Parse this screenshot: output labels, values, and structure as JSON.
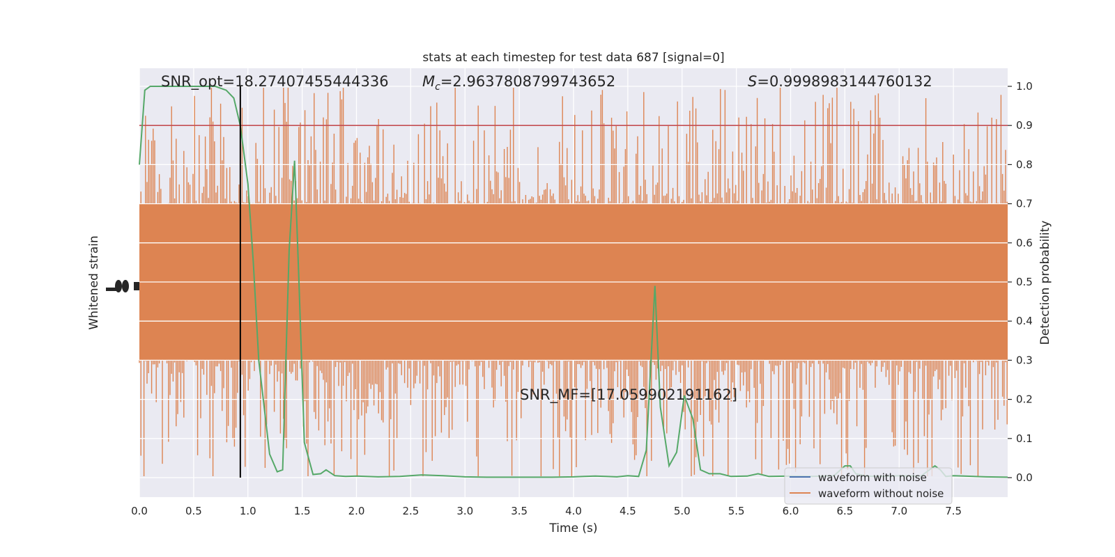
{
  "chart_data": {
    "type": "line",
    "title": "stats at each timestep for test data 687 [signal=0]",
    "xlabel": "Time (s)",
    "ylabel_left": "Whitened strain",
    "ylabel_right": "Detection probability",
    "xlim": [
      0.0,
      8.0
    ],
    "ylim_right": [
      -0.05,
      1.05
    ],
    "x_ticks": [
      "0.0",
      "0.5",
      "1.0",
      "1.5",
      "2.0",
      "2.5",
      "3.0",
      "3.5",
      "4.0",
      "4.5",
      "5.0",
      "5.5",
      "6.0",
      "6.5",
      "7.0",
      "7.5"
    ],
    "y_ticks_right": [
      "0.0",
      "0.1",
      "0.2",
      "0.3",
      "0.4",
      "0.5",
      "0.6",
      "0.7",
      "0.8",
      "0.9",
      "1.0"
    ],
    "grid": true,
    "legend": {
      "placement": "lower-right",
      "entries": [
        {
          "label": "waveform with noise",
          "color": "#4c72b0"
        },
        {
          "label": "waveform without noise",
          "color": "#dd8452"
        }
      ]
    },
    "annotations": {
      "snr_opt": "SNR_opt=18.27407455444336",
      "mc_symbol": "M",
      "mc_sub": "c",
      "mc_value": "=2.9637808799743652",
      "s_symbol": "S",
      "s_value": "=0.9998983144760132",
      "snr_mf": "SNR_MF=[17.059902191162]"
    },
    "threshold": {
      "y": 0.9,
      "color": "#c44e52"
    },
    "marker_time": 0.93,
    "noise_band": {
      "color": "#dd8452",
      "center": 0.5,
      "core_halfwidth": 0.2,
      "spike_max_halfwidth": 0.5
    },
    "detection_probability": {
      "color": "#55a868",
      "x": [
        0.0,
        0.05,
        0.1,
        0.2,
        0.3,
        0.4,
        0.5,
        0.6,
        0.7,
        0.8,
        0.87,
        0.93,
        1.0,
        1.05,
        1.1,
        1.2,
        1.27,
        1.32,
        1.38,
        1.43,
        1.47,
        1.52,
        1.6,
        1.67,
        1.72,
        1.8,
        1.9,
        2.0,
        2.2,
        2.4,
        2.6,
        2.8,
        3.0,
        3.2,
        3.5,
        3.8,
        4.0,
        4.1,
        4.2,
        4.3,
        4.4,
        4.5,
        4.6,
        4.67,
        4.75,
        4.8,
        4.88,
        4.95,
        5.02,
        5.1,
        5.17,
        5.25,
        5.35,
        5.45,
        5.6,
        5.7,
        5.8,
        6.0,
        6.2,
        6.4,
        6.5,
        6.55,
        6.6,
        6.7,
        6.8,
        7.0,
        7.2,
        7.33,
        7.38,
        7.43,
        7.5,
        7.6,
        7.8,
        8.0
      ],
      "y": [
        0.8,
        0.99,
        1.0,
        1.0,
        1.0,
        1.0,
        1.0,
        1.0,
        1.0,
        0.99,
        0.97,
        0.9,
        0.75,
        0.55,
        0.3,
        0.06,
        0.015,
        0.02,
        0.58,
        0.81,
        0.5,
        0.09,
        0.008,
        0.01,
        0.02,
        0.005,
        0.003,
        0.004,
        0.002,
        0.003,
        0.007,
        0.005,
        0.002,
        0.001,
        0.001,
        0.001,
        0.002,
        0.003,
        0.004,
        0.003,
        0.002,
        0.005,
        0.003,
        0.07,
        0.49,
        0.18,
        0.03,
        0.065,
        0.21,
        0.15,
        0.02,
        0.01,
        0.01,
        0.003,
        0.004,
        0.01,
        0.003,
        0.004,
        0.003,
        0.005,
        0.03,
        0.03,
        0.01,
        0.004,
        0.003,
        0.005,
        0.004,
        0.03,
        0.02,
        0.003,
        0.005,
        0.004,
        0.002,
        0.001
      ]
    }
  }
}
